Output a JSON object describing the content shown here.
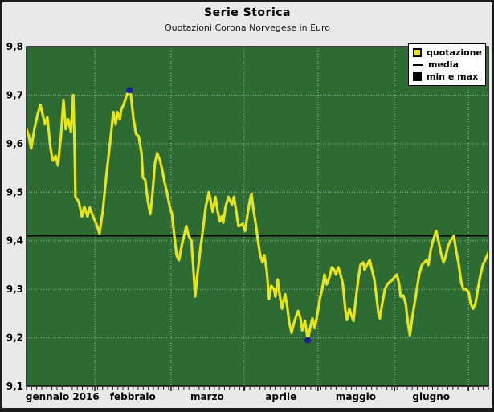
{
  "header": {
    "title": "Serie Storica",
    "subtitle": "Quotazioni Corona Norvegese in Euro"
  },
  "legend": {
    "items": [
      {
        "label": "quotazione",
        "swatch": "yellow-square"
      },
      {
        "label": "media",
        "swatch": "black-line"
      },
      {
        "label": "min e max",
        "swatch": "black-square"
      }
    ]
  },
  "colors": {
    "page_bg": "#e9e9e9",
    "frame": "#1c1c1c",
    "plot_bg": "#2e6b33",
    "plot_border": "#141414",
    "grid": "#bec9b8",
    "line_yellow": "#e6e41f",
    "media_black": "#000000",
    "marker_blue": "#1b1f96",
    "legend_bg": "#ffffff",
    "tick": "#1a1a1a"
  },
  "chart_data": {
    "type": "line",
    "title": "Serie Storica",
    "subtitle": "Quotazioni Corona Norvegese in Euro",
    "xlabel": "",
    "ylabel": "",
    "ylim": [
      9.1,
      9.8
    ],
    "grid": true,
    "legend_position": "top-right",
    "yticks": [
      {
        "v": 9.8,
        "label": "9,8"
      },
      {
        "v": 9.7,
        "label": "9,7"
      },
      {
        "v": 9.6,
        "label": "9,6"
      },
      {
        "v": 9.5,
        "label": "9,5"
      },
      {
        "v": 9.4,
        "label": "9,4"
      },
      {
        "v": 9.3,
        "label": "9,3"
      },
      {
        "v": 9.2,
        "label": "9,2"
      },
      {
        "v": 9.1,
        "label": "9,1"
      }
    ],
    "months": [
      {
        "label": "gennaio 2016",
        "center": 0.078
      },
      {
        "label": "febbraio",
        "center": 0.23
      },
      {
        "label": "marzo",
        "center": 0.391
      },
      {
        "label": "aprile",
        "center": 0.551
      },
      {
        "label": "maggio",
        "center": 0.713
      },
      {
        "label": "giugno",
        "center": 0.876
      }
    ],
    "month_boundaries": [
      0.148,
      0.313,
      0.471,
      0.631,
      0.797,
      0.957
    ],
    "media": 9.41,
    "max_point": {
      "x": 0.223,
      "value": 9.71
    },
    "min_point": {
      "x": 0.609,
      "value": 9.195
    },
    "series": [
      {
        "name": "quotazione",
        "points": [
          [
            0.0,
            9.63
          ],
          [
            0.005,
            9.615
          ],
          [
            0.01,
            9.59
          ],
          [
            0.017,
            9.63
          ],
          [
            0.024,
            9.66
          ],
          [
            0.03,
            9.68
          ],
          [
            0.035,
            9.66
          ],
          [
            0.04,
            9.64
          ],
          [
            0.045,
            9.655
          ],
          [
            0.052,
            9.59
          ],
          [
            0.057,
            9.565
          ],
          [
            0.063,
            9.575
          ],
          [
            0.068,
            9.555
          ],
          [
            0.075,
            9.62
          ],
          [
            0.08,
            9.69
          ],
          [
            0.085,
            9.63
          ],
          [
            0.09,
            9.65
          ],
          [
            0.096,
            9.625
          ],
          [
            0.101,
            9.7
          ],
          [
            0.104,
            9.6
          ],
          [
            0.106,
            9.49
          ],
          [
            0.113,
            9.48
          ],
          [
            0.12,
            9.45
          ],
          [
            0.125,
            9.47
          ],
          [
            0.132,
            9.45
          ],
          [
            0.137,
            9.468
          ],
          [
            0.144,
            9.45
          ],
          [
            0.153,
            9.43
          ],
          [
            0.158,
            9.415
          ],
          [
            0.165,
            9.46
          ],
          [
            0.17,
            9.51
          ],
          [
            0.177,
            9.57
          ],
          [
            0.183,
            9.62
          ],
          [
            0.188,
            9.665
          ],
          [
            0.193,
            9.64
          ],
          [
            0.197,
            9.665
          ],
          [
            0.202,
            9.65
          ],
          [
            0.205,
            9.67
          ],
          [
            0.21,
            9.68
          ],
          [
            0.217,
            9.7
          ],
          [
            0.223,
            9.71
          ],
          [
            0.226,
            9.7
          ],
          [
            0.231,
            9.655
          ],
          [
            0.237,
            9.62
          ],
          [
            0.243,
            9.615
          ],
          [
            0.249,
            9.58
          ],
          [
            0.252,
            9.53
          ],
          [
            0.257,
            9.525
          ],
          [
            0.263,
            9.48
          ],
          [
            0.268,
            9.455
          ],
          [
            0.273,
            9.5
          ],
          [
            0.278,
            9.56
          ],
          [
            0.283,
            9.58
          ],
          [
            0.289,
            9.565
          ],
          [
            0.294,
            9.545
          ],
          [
            0.299,
            9.52
          ],
          [
            0.304,
            9.5
          ],
          [
            0.31,
            9.47
          ],
          [
            0.315,
            9.455
          ],
          [
            0.32,
            9.41
          ],
          [
            0.325,
            9.37
          ],
          [
            0.33,
            9.36
          ],
          [
            0.336,
            9.39
          ],
          [
            0.341,
            9.41
          ],
          [
            0.346,
            9.43
          ],
          [
            0.351,
            9.41
          ],
          [
            0.357,
            9.4
          ],
          [
            0.362,
            9.33
          ],
          [
            0.365,
            9.285
          ],
          [
            0.37,
            9.33
          ],
          [
            0.376,
            9.38
          ],
          [
            0.383,
            9.43
          ],
          [
            0.388,
            9.47
          ],
          [
            0.395,
            9.5
          ],
          [
            0.4,
            9.475
          ],
          [
            0.403,
            9.46
          ],
          [
            0.409,
            9.49
          ],
          [
            0.414,
            9.46
          ],
          [
            0.419,
            9.44
          ],
          [
            0.423,
            9.45
          ],
          [
            0.426,
            9.437
          ],
          [
            0.431,
            9.47
          ],
          [
            0.437,
            9.49
          ],
          [
            0.442,
            9.48
          ],
          [
            0.445,
            9.475
          ],
          [
            0.449,
            9.49
          ],
          [
            0.454,
            9.46
          ],
          [
            0.459,
            9.43
          ],
          [
            0.464,
            9.432
          ],
          [
            0.468,
            9.435
          ],
          [
            0.473,
            9.42
          ],
          [
            0.478,
            9.45
          ],
          [
            0.483,
            9.48
          ],
          [
            0.487,
            9.497
          ],
          [
            0.492,
            9.46
          ],
          [
            0.497,
            9.43
          ],
          [
            0.501,
            9.4
          ],
          [
            0.506,
            9.37
          ],
          [
            0.511,
            9.355
          ],
          [
            0.515,
            9.37
          ],
          [
            0.52,
            9.34
          ],
          [
            0.525,
            9.28
          ],
          [
            0.53,
            9.307
          ],
          [
            0.536,
            9.3
          ],
          [
            0.539,
            9.285
          ],
          [
            0.544,
            9.32
          ],
          [
            0.548,
            9.29
          ],
          [
            0.553,
            9.26
          ],
          [
            0.56,
            9.29
          ],
          [
            0.565,
            9.26
          ],
          [
            0.569,
            9.23
          ],
          [
            0.574,
            9.21
          ],
          [
            0.579,
            9.23
          ],
          [
            0.584,
            9.245
          ],
          [
            0.588,
            9.255
          ],
          [
            0.593,
            9.24
          ],
          [
            0.597,
            9.215
          ],
          [
            0.6,
            9.225
          ],
          [
            0.603,
            9.235
          ],
          [
            0.609,
            9.195
          ],
          [
            0.614,
            9.22
          ],
          [
            0.619,
            9.24
          ],
          [
            0.624,
            9.22
          ],
          [
            0.63,
            9.25
          ],
          [
            0.635,
            9.28
          ],
          [
            0.64,
            9.3
          ],
          [
            0.645,
            9.33
          ],
          [
            0.65,
            9.31
          ],
          [
            0.656,
            9.325
          ],
          [
            0.661,
            9.345
          ],
          [
            0.666,
            9.34
          ],
          [
            0.67,
            9.33
          ],
          [
            0.675,
            9.345
          ],
          [
            0.68,
            9.33
          ],
          [
            0.685,
            9.31
          ],
          [
            0.69,
            9.26
          ],
          [
            0.694,
            9.237
          ],
          [
            0.699,
            9.26
          ],
          [
            0.704,
            9.245
          ],
          [
            0.708,
            9.235
          ],
          [
            0.713,
            9.28
          ],
          [
            0.718,
            9.318
          ],
          [
            0.723,
            9.35
          ],
          [
            0.729,
            9.355
          ],
          [
            0.732,
            9.34
          ],
          [
            0.737,
            9.35
          ],
          [
            0.743,
            9.36
          ],
          [
            0.748,
            9.34
          ],
          [
            0.753,
            9.32
          ],
          [
            0.757,
            9.29
          ],
          [
            0.762,
            9.25
          ],
          [
            0.765,
            9.24
          ],
          [
            0.77,
            9.27
          ],
          [
            0.776,
            9.3
          ],
          [
            0.781,
            9.31
          ],
          [
            0.786,
            9.315
          ],
          [
            0.791,
            9.318
          ],
          [
            0.797,
            9.325
          ],
          [
            0.802,
            9.33
          ],
          [
            0.807,
            9.31
          ],
          [
            0.81,
            9.285
          ],
          [
            0.816,
            9.287
          ],
          [
            0.821,
            9.27
          ],
          [
            0.826,
            9.23
          ],
          [
            0.83,
            9.205
          ],
          [
            0.835,
            9.24
          ],
          [
            0.84,
            9.27
          ],
          [
            0.845,
            9.3
          ],
          [
            0.85,
            9.33
          ],
          [
            0.856,
            9.35
          ],
          [
            0.861,
            9.355
          ],
          [
            0.866,
            9.36
          ],
          [
            0.87,
            9.35
          ],
          [
            0.875,
            9.38
          ],
          [
            0.88,
            9.4
          ],
          [
            0.887,
            9.42
          ],
          [
            0.892,
            9.4
          ],
          [
            0.897,
            9.375
          ],
          [
            0.903,
            9.355
          ],
          [
            0.908,
            9.37
          ],
          [
            0.913,
            9.39
          ],
          [
            0.918,
            9.4
          ],
          [
            0.925,
            9.41
          ],
          [
            0.93,
            9.38
          ],
          [
            0.936,
            9.35
          ],
          [
            0.941,
            9.315
          ],
          [
            0.946,
            9.3
          ],
          [
            0.951,
            9.3
          ],
          [
            0.957,
            9.295
          ],
          [
            0.962,
            9.27
          ],
          [
            0.967,
            9.26
          ],
          [
            0.972,
            9.27
          ],
          [
            0.977,
            9.3
          ],
          [
            0.983,
            9.33
          ],
          [
            0.988,
            9.35
          ],
          [
            0.993,
            9.36
          ],
          [
            1.0,
            9.375
          ]
        ]
      }
    ]
  }
}
